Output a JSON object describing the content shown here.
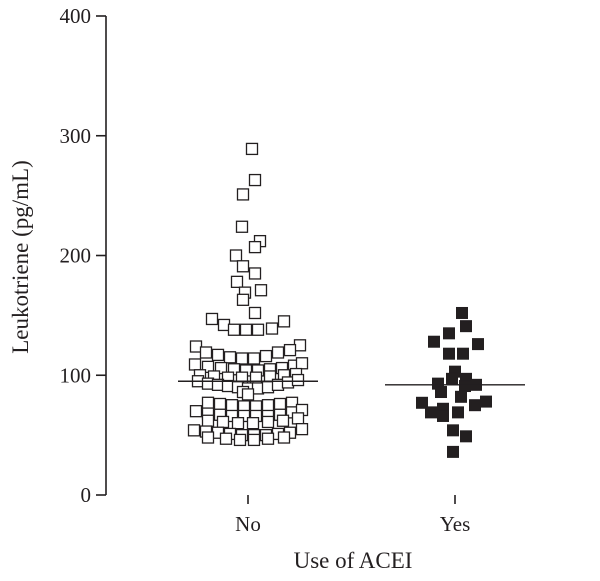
{
  "chart_data": {
    "type": "scatter",
    "subtype": "dot-plot",
    "xlabel": "Use of ACEI",
    "ylabel": "Leukotriene (pg/mL)",
    "ylim": [
      0,
      400
    ],
    "yticks": [
      "0",
      "100",
      "200",
      "300",
      "400"
    ],
    "categories": [
      "No",
      "Yes"
    ],
    "grid": false,
    "colors": {
      "axis": "#231f20",
      "no_marker": "#ffffff",
      "yes_marker": "#231f20"
    },
    "series": [
      {
        "category": "No",
        "marker": "open-square",
        "median": 95,
        "points": [
          [
            0.04,
            289
          ],
          [
            -0.05,
            251
          ],
          [
            0.07,
            263
          ],
          [
            -0.06,
            224
          ],
          [
            0.12,
            212
          ],
          [
            0.07,
            207
          ],
          [
            -0.12,
            200
          ],
          [
            -0.05,
            191
          ],
          [
            0.07,
            185
          ],
          [
            -0.11,
            178
          ],
          [
            0.13,
            171
          ],
          [
            -0.03,
            169
          ],
          [
            -0.05,
            163
          ],
          [
            0.07,
            152
          ],
          [
            -0.36,
            147
          ],
          [
            -0.24,
            142
          ],
          [
            -0.14,
            138
          ],
          [
            -0.02,
            138
          ],
          [
            0.1,
            138
          ],
          [
            0.24,
            139
          ],
          [
            0.36,
            145
          ],
          [
            -0.52,
            124
          ],
          [
            0.52,
            125
          ],
          [
            -0.42,
            119
          ],
          [
            -0.3,
            117
          ],
          [
            -0.18,
            115
          ],
          [
            -0.06,
            114
          ],
          [
            0.06,
            114
          ],
          [
            0.18,
            116
          ],
          [
            0.3,
            119
          ],
          [
            0.42,
            121
          ],
          [
            -0.53,
            109
          ],
          [
            -0.4,
            107
          ],
          [
            -0.27,
            106
          ],
          [
            -0.14,
            105
          ],
          [
            -0.02,
            104
          ],
          [
            0.1,
            104
          ],
          [
            0.22,
            105
          ],
          [
            0.34,
            106
          ],
          [
            0.46,
            108
          ],
          [
            0.54,
            110
          ],
          [
            -0.48,
            100
          ],
          [
            -0.34,
            99
          ],
          [
            -0.2,
            98
          ],
          [
            -0.06,
            98
          ],
          [
            0.08,
            98
          ],
          [
            0.22,
            99
          ],
          [
            0.36,
            100
          ],
          [
            0.48,
            101
          ],
          [
            -0.5,
            95
          ],
          [
            -0.4,
            93
          ],
          [
            -0.3,
            92
          ],
          [
            -0.2,
            91
          ],
          [
            -0.1,
            90
          ],
          [
            0.0,
            89
          ],
          [
            0.1,
            89
          ],
          [
            0.2,
            90
          ],
          [
            0.3,
            92
          ],
          [
            0.4,
            94
          ],
          [
            0.5,
            96
          ],
          [
            -0.05,
            86
          ],
          [
            0.0,
            84
          ],
          [
            -0.4,
            77
          ],
          [
            -0.28,
            76
          ],
          [
            -0.16,
            75
          ],
          [
            -0.04,
            74
          ],
          [
            0.08,
            74
          ],
          [
            0.2,
            75
          ],
          [
            0.32,
            76
          ],
          [
            0.44,
            77
          ],
          [
            -0.52,
            70
          ],
          [
            -0.4,
            68
          ],
          [
            -0.28,
            67
          ],
          [
            -0.16,
            66
          ],
          [
            -0.04,
            66
          ],
          [
            0.08,
            66
          ],
          [
            0.2,
            66
          ],
          [
            0.32,
            67
          ],
          [
            0.44,
            69
          ],
          [
            0.54,
            71
          ],
          [
            -0.4,
            62
          ],
          [
            -0.25,
            61
          ],
          [
            -0.1,
            60
          ],
          [
            0.05,
            60
          ],
          [
            0.2,
            61
          ],
          [
            0.35,
            62
          ],
          [
            0.5,
            64
          ],
          [
            -0.54,
            54
          ],
          [
            -0.42,
            53
          ],
          [
            -0.3,
            52
          ],
          [
            -0.18,
            51
          ],
          [
            -0.06,
            50
          ],
          [
            0.06,
            50
          ],
          [
            0.18,
            50
          ],
          [
            0.3,
            51
          ],
          [
            0.42,
            52
          ],
          [
            0.54,
            55
          ],
          [
            -0.4,
            48
          ],
          [
            -0.22,
            47
          ],
          [
            -0.08,
            46
          ],
          [
            0.06,
            46
          ],
          [
            0.2,
            47
          ],
          [
            0.36,
            48
          ]
        ]
      },
      {
        "category": "Yes",
        "marker": "filled-square",
        "median": 92,
        "points": [
          [
            0.07,
            152
          ],
          [
            0.11,
            141
          ],
          [
            -0.06,
            135
          ],
          [
            -0.21,
            128
          ],
          [
            0.23,
            126
          ],
          [
            -0.06,
            118
          ],
          [
            0.08,
            118
          ],
          [
            0.0,
            103
          ],
          [
            -0.03,
            97
          ],
          [
            0.11,
            97
          ],
          [
            -0.17,
            93
          ],
          [
            0.21,
            92
          ],
          [
            0.1,
            91
          ],
          [
            -0.14,
            86
          ],
          [
            0.06,
            82
          ],
          [
            -0.33,
            77
          ],
          [
            0.31,
            78
          ],
          [
            0.2,
            75
          ],
          [
            -0.12,
            72
          ],
          [
            0.03,
            69
          ],
          [
            -0.24,
            69
          ],
          [
            -0.12,
            66
          ],
          [
            -0.02,
            54
          ],
          [
            0.11,
            49
          ],
          [
            -0.02,
            36
          ]
        ]
      }
    ]
  }
}
